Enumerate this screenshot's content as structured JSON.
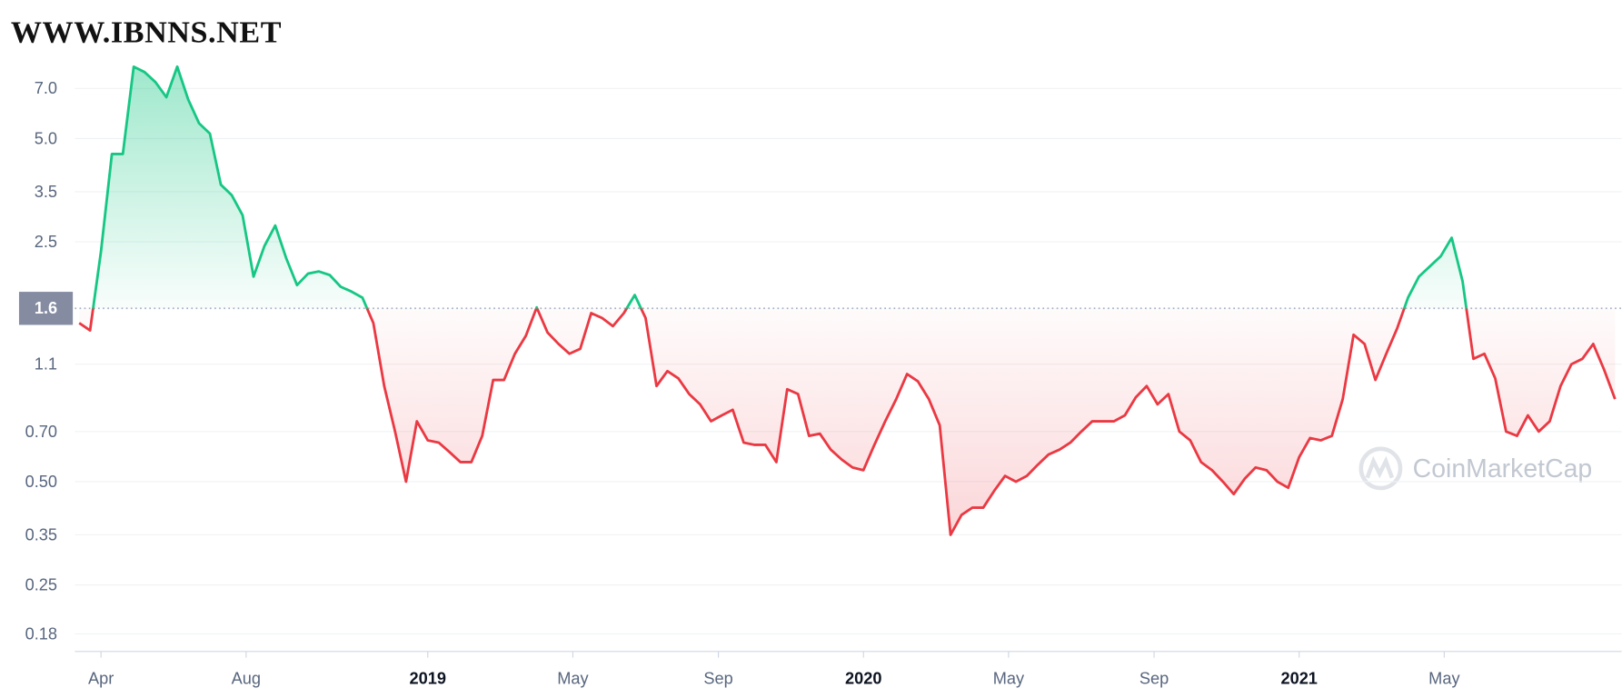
{
  "chart_data": {
    "type": "line",
    "annotations": [
      "WWW.IBNNS.NET",
      "CoinMarketCap"
    ],
    "baseline": 1.6,
    "colors": {
      "up": "#16c784",
      "down": "#ea3943"
    },
    "log_scale": true,
    "grid": true,
    "x": [
      2018.2,
      2018.225,
      2018.25,
      2018.275,
      2018.3,
      2018.325,
      2018.35,
      2018.375,
      2018.4,
      2018.425,
      2018.45,
      2018.475,
      2018.5,
      2018.525,
      2018.55,
      2018.575,
      2018.6,
      2018.625,
      2018.65,
      2018.675,
      2018.7,
      2018.725,
      2018.75,
      2018.775,
      2018.8,
      2018.825,
      2018.85,
      2018.875,
      2018.9,
      2018.925,
      2018.95,
      2018.975,
      2019,
      2019.025,
      2019.05,
      2019.075,
      2019.1,
      2019.125,
      2019.15,
      2019.175,
      2019.2,
      2019.225,
      2019.25,
      2019.275,
      2019.3,
      2019.325,
      2019.35,
      2019.375,
      2019.4,
      2019.425,
      2019.45,
      2019.475,
      2019.5,
      2019.525,
      2019.55,
      2019.575,
      2019.6,
      2019.625,
      2019.65,
      2019.675,
      2019.7,
      2019.725,
      2019.75,
      2019.775,
      2019.8,
      2019.825,
      2019.85,
      2019.875,
      2019.9,
      2019.925,
      2019.95,
      2019.975,
      2020,
      2020.025,
      2020.05,
      2020.075,
      2020.1,
      2020.125,
      2020.15,
      2020.175,
      2020.2,
      2020.225,
      2020.25,
      2020.275,
      2020.3,
      2020.325,
      2020.35,
      2020.375,
      2020.4,
      2020.425,
      2020.45,
      2020.475,
      2020.5,
      2020.525,
      2020.55,
      2020.575,
      2020.6,
      2020.625,
      2020.65,
      2020.675,
      2020.7,
      2020.725,
      2020.75,
      2020.775,
      2020.8,
      2020.825,
      2020.85,
      2020.875,
      2020.9,
      2020.925,
      2020.95,
      2020.975,
      2021,
      2021.025,
      2021.05,
      2021.075,
      2021.1,
      2021.125,
      2021.15,
      2021.175,
      2021.2,
      2021.225,
      2021.25,
      2021.275,
      2021.3,
      2021.325,
      2021.35,
      2021.375,
      2021.4,
      2021.425,
      2021.45,
      2021.475,
      2021.5,
      2021.525,
      2021.55,
      2021.575,
      2021.6,
      2021.625,
      2021.65,
      2021.675,
      2021.7,
      2021.725
    ],
    "values": [
      1.45,
      1.38,
      2.35,
      4.51,
      4.51,
      8.1,
      7.81,
      7.3,
      6.6,
      8.1,
      6.5,
      5.54,
      5.17,
      3.67,
      3.42,
      2.99,
      1.98,
      2.43,
      2.79,
      2.24,
      1.87,
      2.02,
      2.05,
      2.0,
      1.85,
      1.79,
      1.72,
      1.45,
      0.95,
      0.7,
      0.5,
      0.75,
      0.66,
      0.65,
      0.61,
      0.57,
      0.57,
      0.68,
      0.99,
      0.99,
      1.18,
      1.33,
      1.61,
      1.36,
      1.26,
      1.18,
      1.22,
      1.55,
      1.5,
      1.42,
      1.55,
      1.75,
      1.5,
      0.95,
      1.05,
      1.0,
      0.9,
      0.84,
      0.75,
      0.78,
      0.81,
      0.65,
      0.64,
      0.64,
      0.57,
      0.93,
      0.9,
      0.68,
      0.69,
      0.62,
      0.58,
      0.55,
      0.54,
      0.64,
      0.75,
      0.87,
      1.03,
      0.98,
      0.87,
      0.73,
      0.35,
      0.4,
      0.42,
      0.42,
      0.47,
      0.52,
      0.5,
      0.52,
      0.56,
      0.6,
      0.62,
      0.65,
      0.7,
      0.75,
      0.75,
      0.75,
      0.78,
      0.88,
      0.95,
      0.84,
      0.9,
      0.7,
      0.66,
      0.57,
      0.54,
      0.5,
      0.46,
      0.51,
      0.55,
      0.54,
      0.5,
      0.48,
      0.59,
      0.67,
      0.66,
      0.68,
      0.87,
      1.34,
      1.26,
      0.99,
      1.18,
      1.4,
      1.72,
      1.98,
      2.12,
      2.27,
      2.57,
      1.92,
      1.14,
      1.18,
      1.0,
      0.7,
      0.68,
      0.78,
      0.7,
      0.75,
      0.95,
      1.1,
      1.14,
      1.26,
      1.06,
      0.87
    ],
    "xlim": [
      2018.19,
      2021.74
    ],
    "xticks": [
      {
        "value": 2018.25,
        "label": "Apr"
      },
      {
        "value": 2018.583,
        "label": "Aug"
      },
      2019,
      {
        "value": 2019.333,
        "label": "May"
      },
      {
        "value": 2019.667,
        "label": "Sep"
      },
      2020,
      {
        "value": 2020.333,
        "label": "May"
      },
      {
        "value": 2020.667,
        "label": "Sep"
      },
      2021,
      {
        "value": 2021.333,
        "label": "May"
      }
    ],
    "ylim": [
      0.16,
      9.6
    ],
    "yticks": [
      {
        "value": 7,
        "label": "7.0"
      },
      {
        "value": 5,
        "label": "5.0"
      },
      3.5,
      2.5,
      1.6,
      1.1,
      {
        "value": 0.7,
        "label": "0.70"
      },
      {
        "value": 0.5,
        "label": "0.50"
      },
      0.35,
      0.25,
      0.18
    ]
  }
}
